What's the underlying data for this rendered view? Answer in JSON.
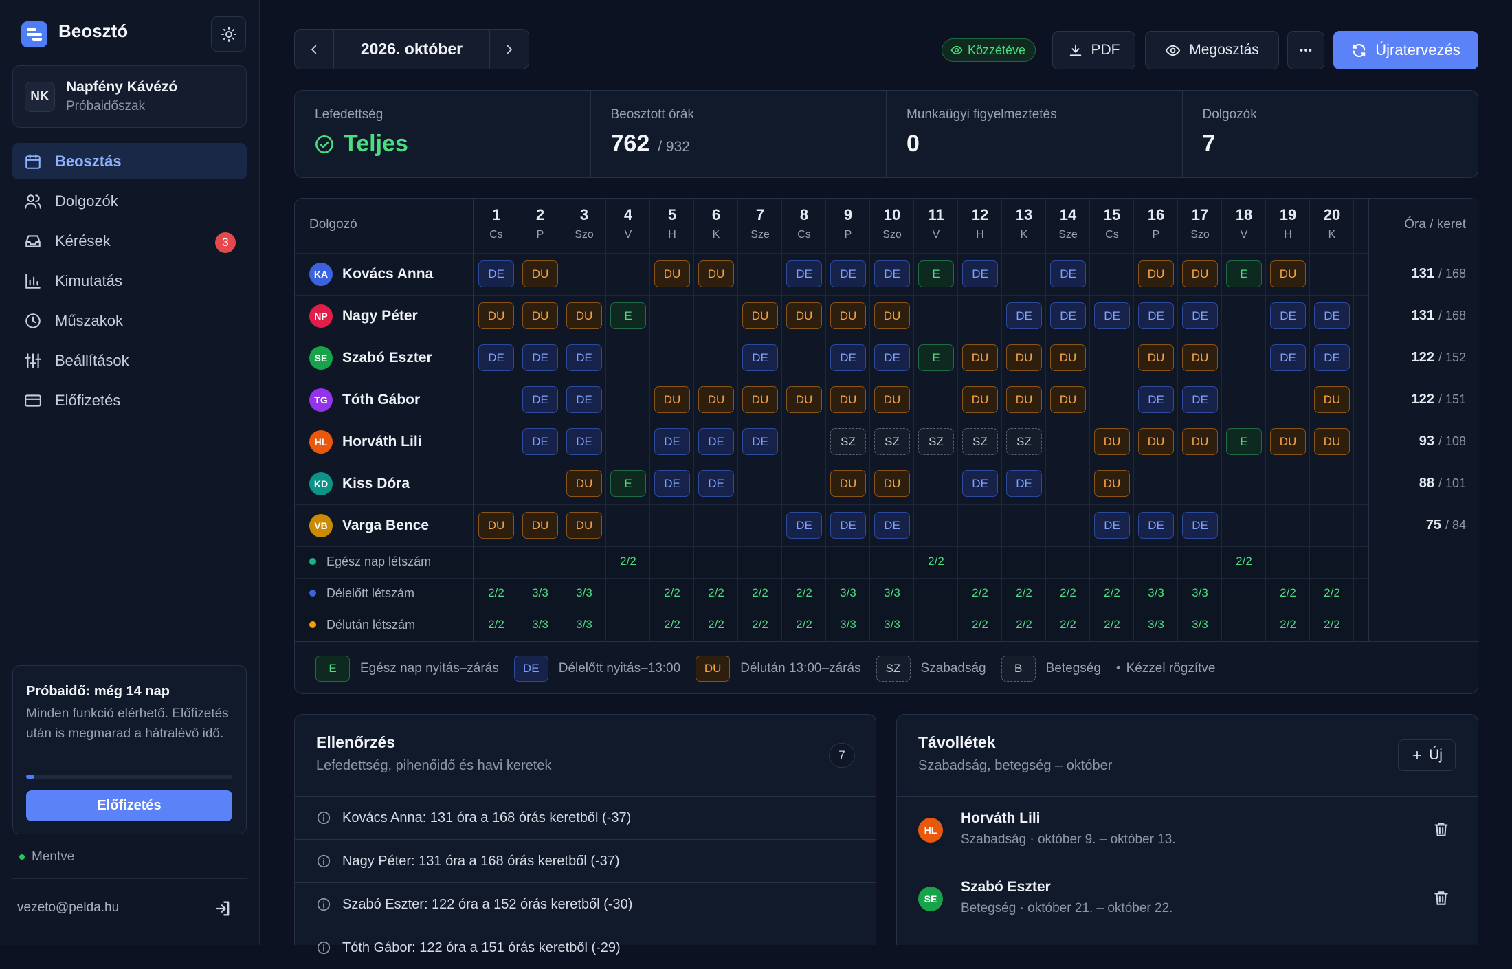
{
  "app": {
    "title": "Beosztó"
  },
  "org": {
    "initials": "NK",
    "name": "Napfény Kávézó",
    "plan": "Próbaidőszak"
  },
  "nav": [
    {
      "label": "Beosztás",
      "icon": "calendar-icon",
      "active": true
    },
    {
      "label": "Dolgozók",
      "icon": "users-icon"
    },
    {
      "label": "Kérések",
      "icon": "inbox-icon",
      "badge": "3"
    },
    {
      "label": "Kimutatás",
      "icon": "bar-chart-icon"
    },
    {
      "label": "Műszakok",
      "icon": "clock-icon"
    },
    {
      "label": "Beállítások",
      "icon": "sliders-icon"
    },
    {
      "label": "Előfizetés",
      "icon": "credit-card-icon"
    }
  ],
  "trial": {
    "title": "Próbaidő: még 14 nap",
    "text": "Minden funkció elérhető. Előfizetés után is megmarad a hátralévő idő.",
    "progress": 0.04,
    "button": "Előfizetés"
  },
  "status": {
    "saved": "Mentve"
  },
  "user": {
    "email": "vezeto@pelda.hu"
  },
  "topbar": {
    "month": "2026. október",
    "published": "Közzétéve",
    "pdf": "PDF",
    "share": "Megosztás",
    "replan": "Újratervezés"
  },
  "stats": {
    "coverage_label": "Lefedettség",
    "coverage_value": "Teljes",
    "hours_label": "Beosztott órák",
    "hours_value": "762",
    "hours_cap": "/ 932",
    "warnings_label": "Munkaügyi figyelmeztetés",
    "warnings_value": "0",
    "employees_label": "Dolgozók",
    "employees_value": "7"
  },
  "schedule": {
    "employee_header": "Dolgozó",
    "hours_header": "Óra / keret",
    "days": [
      {
        "n": "1",
        "d": "Cs"
      },
      {
        "n": "2",
        "d": "P"
      },
      {
        "n": "3",
        "d": "Szo"
      },
      {
        "n": "4",
        "d": "V"
      },
      {
        "n": "5",
        "d": "H"
      },
      {
        "n": "6",
        "d": "K"
      },
      {
        "n": "7",
        "d": "Sze"
      },
      {
        "n": "8",
        "d": "Cs"
      },
      {
        "n": "9",
        "d": "P"
      },
      {
        "n": "10",
        "d": "Szo"
      },
      {
        "n": "11",
        "d": "V"
      },
      {
        "n": "12",
        "d": "H"
      },
      {
        "n": "13",
        "d": "K"
      },
      {
        "n": "14",
        "d": "Sze"
      },
      {
        "n": "15",
        "d": "Cs"
      },
      {
        "n": "16",
        "d": "P"
      },
      {
        "n": "17",
        "d": "Szo"
      },
      {
        "n": "18",
        "d": "V"
      },
      {
        "n": "19",
        "d": "H"
      },
      {
        "n": "20",
        "d": "K"
      }
    ],
    "employees": [
      {
        "initials": "KA",
        "name": "Kovács Anna",
        "color": "#3b63e0",
        "hours": "131",
        "cap": "/ 168",
        "shifts": [
          "DE",
          "DU",
          "",
          "",
          "DU",
          "DU",
          "",
          "DE",
          "DE",
          "DE",
          "E",
          "DE",
          "",
          "DE",
          "",
          "DU",
          "DU",
          "E",
          "DU",
          ""
        ]
      },
      {
        "initials": "NP",
        "name": "Nagy Péter",
        "color": "#e11d48",
        "hours": "131",
        "cap": "/ 168",
        "shifts": [
          "DU",
          "DU",
          "DU",
          "E",
          "",
          "",
          "DU",
          "DU",
          "DU",
          "DU",
          "",
          "",
          "DE",
          "DE",
          "DE",
          "DE",
          "DE",
          "",
          "DE",
          "DE"
        ]
      },
      {
        "initials": "SE",
        "name": "Szabó Eszter",
        "color": "#16a34a",
        "hours": "122",
        "cap": "/ 152",
        "shifts": [
          "DE",
          "DE",
          "DE",
          "",
          "",
          "",
          "DE",
          "",
          "DE",
          "DE",
          "E",
          "DU",
          "DU",
          "DU",
          "",
          "DU",
          "DU",
          "",
          "DE",
          "DE"
        ]
      },
      {
        "initials": "TG",
        "name": "Tóth Gábor",
        "color": "#9333ea",
        "hours": "122",
        "cap": "/ 151",
        "shifts": [
          "",
          "DE",
          "DE",
          "",
          "DU",
          "DU",
          "DU",
          "DU",
          "DU",
          "DU",
          "",
          "DU",
          "DU",
          "DU",
          "",
          "DE",
          "DE",
          "",
          "",
          "DU"
        ]
      },
      {
        "initials": "HL",
        "name": "Horváth Lili",
        "color": "#ea580c",
        "hours": "93",
        "cap": "/ 108",
        "shifts": [
          "",
          "DE",
          "DE",
          "",
          "DE",
          "DE",
          "DE",
          "",
          "SZ",
          "SZ",
          "SZ",
          "SZ",
          "SZ",
          "",
          "DU",
          "DU",
          "DU",
          "E",
          "DU",
          "DU"
        ]
      },
      {
        "initials": "KD",
        "name": "Kiss Dóra",
        "color": "#0d9488",
        "hours": "88",
        "cap": "/ 101",
        "shifts": [
          "",
          "",
          "DU",
          "E",
          "DE",
          "DE",
          "",
          "",
          "DU",
          "DU",
          "",
          "DE",
          "DE",
          "",
          "DU",
          "",
          "",
          "",
          "",
          ""
        ]
      },
      {
        "initials": "VB",
        "name": "Varga Bence",
        "color": "#ca8a04",
        "hours": "75",
        "cap": "/ 84",
        "shifts": [
          "DU",
          "DU",
          "DU",
          "",
          "",
          "",
          "",
          "DE",
          "DE",
          "DE",
          "",
          "",
          "",
          "",
          "DE",
          "DE",
          "DE",
          "",
          "",
          ""
        ]
      }
    ],
    "coverage": [
      {
        "label": "Egész nap létszám",
        "color": "#10b981",
        "values": [
          "",
          "",
          "",
          "2/2",
          "",
          "",
          "",
          "",
          "",
          "",
          "2/2",
          "",
          "",
          "",
          "",
          "",
          "",
          "2/2",
          "",
          ""
        ]
      },
      {
        "label": "Délelőtt létszám",
        "color": "#3b63e0",
        "values": [
          "2/2",
          "3/3",
          "3/3",
          "",
          "2/2",
          "2/2",
          "2/2",
          "2/2",
          "3/3",
          "3/3",
          "",
          "2/2",
          "2/2",
          "2/2",
          "2/2",
          "3/3",
          "3/3",
          "",
          "2/2",
          "2/2"
        ]
      },
      {
        "label": "Délután létszám",
        "color": "#f59e0b",
        "values": [
          "2/2",
          "3/3",
          "3/3",
          "",
          "2/2",
          "2/2",
          "2/2",
          "2/2",
          "3/3",
          "3/3",
          "",
          "2/2",
          "2/2",
          "2/2",
          "2/2",
          "3/3",
          "3/3",
          "",
          "2/2",
          "2/2"
        ]
      }
    ]
  },
  "legend": {
    "e_code": "E",
    "e_text": "Egész nap nyitás–zárás",
    "de_code": "DE",
    "de_text": "Délelőtt nyitás–13:00",
    "du_code": "DU",
    "du_text": "Délután 13:00–zárás",
    "sz_code": "SZ",
    "sz_text": "Szabadság",
    "b_code": "B",
    "b_text": "Betegség",
    "manual": "Kézzel rögzítve"
  },
  "checks": {
    "title": "Ellenőrzés",
    "subtitle": "Lefedettség, pihenőidő és havi keretek",
    "count": "7",
    "items": [
      "Kovács Anna: 131 óra a 168 órás keretből (-37)",
      "Nagy Péter: 131 óra a 168 órás keretből (-37)",
      "Szabó Eszter: 122 óra a 152 órás keretből (-30)",
      "Tóth Gábor: 122 óra a 151 órás keretből (-29)"
    ]
  },
  "absences": {
    "title": "Távollétek",
    "subtitle": "Szabadság, betegség – október",
    "new_button": "Új",
    "items": [
      {
        "initials": "HL",
        "name": "Horváth Lili",
        "color": "#ea580c",
        "detail": "Szabadság · október 9. – október 13."
      },
      {
        "initials": "SE",
        "name": "Szabó Eszter",
        "color": "#16a34a",
        "detail": "Betegség · október 21. – október 22."
      }
    ]
  }
}
